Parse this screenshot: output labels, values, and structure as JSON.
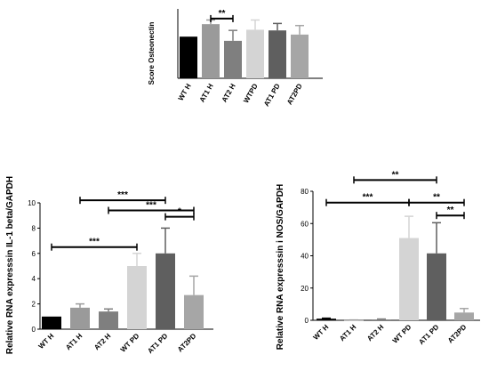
{
  "chart_data": [
    {
      "type": "bar",
      "ylabel": "Score Osteonectin",
      "categories": [
        "WT H",
        "AT1 H",
        "AT2 H",
        "WTPD",
        "AT1 PD",
        "AT2PD"
      ],
      "values": [
        3.0,
        3.9,
        2.7,
        3.5,
        3.45,
        3.15
      ],
      "errors": [
        0.0,
        0.3,
        0.75,
        0.7,
        0.5,
        0.65
      ],
      "colors": [
        "#000000",
        "#9a9a9a",
        "#7f7f7f",
        "#d4d4d4",
        "#5f5f5f",
        "#a6a6a6"
      ],
      "ylim": [
        0,
        5
      ],
      "yticks": [],
      "significance": [
        {
          "from": 1,
          "to": 2,
          "label": "**",
          "y": 4.3
        }
      ]
    },
    {
      "type": "bar",
      "ylabel": "Relative RNA expresssin IL-1 beta/GAPDH",
      "categories": [
        "WT H",
        "AT1 H",
        "AT2 H",
        "WT PD",
        "AT1 PD",
        "AT2PD"
      ],
      "values": [
        1.0,
        1.7,
        1.4,
        5.0,
        6.0,
        2.7
      ],
      "errors": [
        0.0,
        0.3,
        0.2,
        1.0,
        2.0,
        1.5
      ],
      "colors": [
        "#000000",
        "#9a9a9a",
        "#7f7f7f",
        "#d4d4d4",
        "#5f5f5f",
        "#a6a6a6"
      ],
      "ylim": [
        0,
        10
      ],
      "yticks": [
        "0",
        "2",
        "4",
        "6",
        "8",
        "10"
      ],
      "significance": [
        {
          "from": 1,
          "to": 4,
          "label": "***",
          "y": 10.2
        },
        {
          "from": 2,
          "to": 5,
          "label": "***",
          "y": 9.4
        },
        {
          "from": 4,
          "to": 5,
          "label": "*",
          "y": 8.9
        },
        {
          "from": 0,
          "to": 3,
          "label": "***",
          "y": 6.5
        }
      ]
    },
    {
      "type": "bar",
      "ylabel": "Relative RNA expresssin i NOS/GAPDH",
      "categories": [
        "WT H",
        "AT1 H",
        "AT2 H",
        "WT PD",
        "AT1 PD",
        "AT2PD"
      ],
      "values": [
        1.0,
        0.1,
        0.5,
        51.0,
        41.5,
        4.8
      ],
      "errors": [
        0.3,
        0.1,
        0.3,
        13.5,
        19.0,
        2.5
      ],
      "colors": [
        "#000000",
        "#9a9a9a",
        "#7f7f7f",
        "#d4d4d4",
        "#5f5f5f",
        "#a6a6a6"
      ],
      "ylim": [
        0,
        80
      ],
      "yticks": [
        "0",
        "20",
        "40",
        "60",
        "80"
      ],
      "significance": [
        {
          "from": 1,
          "to": 4,
          "label": "**",
          "y": 87
        },
        {
          "from": 0,
          "to": 3,
          "label": "***",
          "y": 73
        },
        {
          "from": 3,
          "to": 5,
          "label": "**",
          "y": 73
        },
        {
          "from": 4,
          "to": 5,
          "label": "**",
          "y": 65
        }
      ]
    }
  ]
}
